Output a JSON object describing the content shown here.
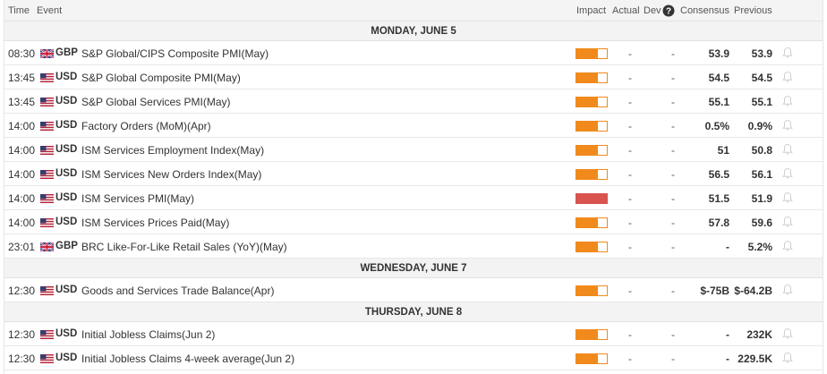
{
  "header": {
    "time": "Time",
    "event": "Event",
    "impact": "Impact",
    "actual": "Actual",
    "dev": "Dev",
    "info_icon": "info-icon",
    "consensus": "Consensus",
    "previous": "Previous"
  },
  "colors": {
    "impact_medium": "#f08a1c",
    "impact_high": "#d9534f",
    "day_bg": "#f3f3f3",
    "header_bg": "#f4f4f4"
  },
  "days": [
    {
      "label": "MONDAY, JUNE 5",
      "events": [
        {
          "time": "08:30",
          "flag": "uk-flag-icon",
          "currency": "GBP",
          "event": "S&P Global/CIPS Composite PMI(May)",
          "impact_level": 0.7,
          "impact": "medium",
          "actual": "-",
          "dev": "-",
          "consensus": "53.9",
          "previous": "53.9"
        },
        {
          "time": "13:45",
          "flag": "us-flag-icon",
          "currency": "USD",
          "event": "S&P Global Composite PMI(May)",
          "impact_level": 0.7,
          "impact": "medium",
          "actual": "-",
          "dev": "-",
          "consensus": "54.5",
          "previous": "54.5"
        },
        {
          "time": "13:45",
          "flag": "us-flag-icon",
          "currency": "USD",
          "event": "S&P Global Services PMI(May)",
          "impact_level": 0.7,
          "impact": "medium",
          "actual": "-",
          "dev": "-",
          "consensus": "55.1",
          "previous": "55.1"
        },
        {
          "time": "14:00",
          "flag": "us-flag-icon",
          "currency": "USD",
          "event": "Factory Orders (MoM)(Apr)",
          "impact_level": 0.7,
          "impact": "medium",
          "actual": "-",
          "dev": "-",
          "consensus": "0.5%",
          "previous": "0.9%"
        },
        {
          "time": "14:00",
          "flag": "us-flag-icon",
          "currency": "USD",
          "event": "ISM Services Employment Index(May)",
          "impact_level": 0.7,
          "impact": "medium",
          "actual": "-",
          "dev": "-",
          "consensus": "51",
          "previous": "50.8"
        },
        {
          "time": "14:00",
          "flag": "us-flag-icon",
          "currency": "USD",
          "event": "ISM Services New Orders Index(May)",
          "impact_level": 0.7,
          "impact": "medium",
          "actual": "-",
          "dev": "-",
          "consensus": "56.5",
          "previous": "56.1"
        },
        {
          "time": "14:00",
          "flag": "us-flag-icon",
          "currency": "USD",
          "event": "ISM Services PMI(May)",
          "impact_level": 1.0,
          "impact": "high",
          "actual": "-",
          "dev": "-",
          "consensus": "51.5",
          "previous": "51.9"
        },
        {
          "time": "14:00",
          "flag": "us-flag-icon",
          "currency": "USD",
          "event": "ISM Services Prices Paid(May)",
          "impact_level": 0.7,
          "impact": "medium",
          "actual": "-",
          "dev": "-",
          "consensus": "57.8",
          "previous": "59.6"
        },
        {
          "time": "23:01",
          "flag": "uk-flag-icon",
          "currency": "GBP",
          "event": "BRC Like-For-Like Retail Sales (YoY)(May)",
          "impact_level": 0.7,
          "impact": "medium",
          "actual": "-",
          "dev": "-",
          "consensus": "-",
          "previous": "5.2%"
        }
      ]
    },
    {
      "label": "WEDNESDAY, JUNE 7",
      "events": [
        {
          "time": "12:30",
          "flag": "us-flag-icon",
          "currency": "USD",
          "event": "Goods and Services Trade Balance(Apr)",
          "impact_level": 0.7,
          "impact": "medium",
          "actual": "-",
          "dev": "-",
          "consensus": "$-75B",
          "previous": "$-64.2B"
        }
      ]
    },
    {
      "label": "THURSDAY, JUNE 8",
      "events": [
        {
          "time": "12:30",
          "flag": "us-flag-icon",
          "currency": "USD",
          "event": "Initial Jobless Claims(Jun 2)",
          "impact_level": 0.7,
          "impact": "medium",
          "actual": "-",
          "dev": "-",
          "consensus": "-",
          "previous": "232K"
        },
        {
          "time": "12:30",
          "flag": "us-flag-icon",
          "currency": "USD",
          "event": "Initial Jobless Claims 4-week average(Jun 2)",
          "impact_level": 0.7,
          "impact": "medium",
          "actual": "-",
          "dev": "-",
          "consensus": "-",
          "previous": "229.5K"
        }
      ]
    }
  ]
}
